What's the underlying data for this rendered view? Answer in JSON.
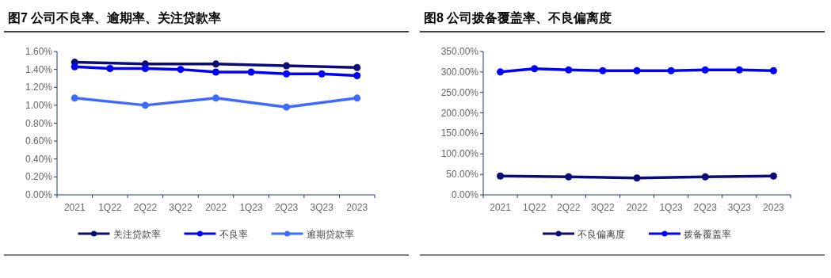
{
  "chart_data": [
    {
      "type": "line",
      "title": "图7  公司不良率、逾期率、关注贷款率",
      "categories": [
        "2021",
        "1Q22",
        "2Q22",
        "3Q22",
        "2022",
        "1Q23",
        "2Q23",
        "3Q23",
        "2023"
      ],
      "ylim": [
        0,
        1.6
      ],
      "yticks": [
        {
          "value": 0,
          "label": "0.00%"
        },
        {
          "value": 0.2,
          "label": "0.20%"
        },
        {
          "value": 0.4,
          "label": "0.40%"
        },
        {
          "value": 0.6,
          "label": "0.60%"
        },
        {
          "value": 0.8,
          "label": "0.80%"
        },
        {
          "value": 1.0,
          "label": "1.00%"
        },
        {
          "value": 1.2,
          "label": "1.20%"
        },
        {
          "value": 1.4,
          "label": "1.40%"
        },
        {
          "value": 1.6,
          "label": "1.60%"
        }
      ],
      "grid": false,
      "legend": "bottom",
      "marker": "circle",
      "line_style": "solid",
      "series": [
        {
          "name": "关注贷款率",
          "color": "#0a0a78",
          "values": [
            1.48,
            null,
            1.46,
            null,
            1.46,
            null,
            1.44,
            null,
            1.42
          ]
        },
        {
          "name": "不良率",
          "color": "#0000ff",
          "values": [
            1.43,
            1.41,
            1.41,
            1.4,
            1.37,
            1.37,
            1.35,
            1.35,
            1.33
          ]
        },
        {
          "name": "逾期贷款率",
          "color": "#3d6bff",
          "values": [
            1.08,
            null,
            1.0,
            null,
            1.08,
            null,
            0.98,
            null,
            1.08
          ]
        }
      ]
    },
    {
      "type": "line",
      "title": "图8  公司拨备覆盖率、不良偏离度",
      "categories": [
        "2021",
        "1Q22",
        "2Q22",
        "3Q22",
        "2022",
        "1Q23",
        "2Q23",
        "3Q23",
        "2023"
      ],
      "ylim": [
        0,
        350
      ],
      "yticks": [
        {
          "value": 0,
          "label": "0.00%"
        },
        {
          "value": 50,
          "label": "50.00%"
        },
        {
          "value": 100,
          "label": "100.00%"
        },
        {
          "value": 150,
          "label": "150.00%"
        },
        {
          "value": 200,
          "label": "200.00%"
        },
        {
          "value": 250,
          "label": "250.00%"
        },
        {
          "value": 300,
          "label": "300.00%"
        },
        {
          "value": 350,
          "label": "350.00%"
        }
      ],
      "grid": false,
      "legend": "bottom",
      "marker": "circle",
      "line_style": "solid",
      "series": [
        {
          "name": "不良偏离度",
          "color": "#0a0a78",
          "values": [
            46,
            null,
            44,
            null,
            41,
            null,
            44,
            null,
            46
          ]
        },
        {
          "name": "拨备覆盖率",
          "color": "#0000ff",
          "values": [
            300,
            308,
            305,
            303,
            303,
            303,
            305,
            305,
            303
          ]
        }
      ]
    }
  ]
}
